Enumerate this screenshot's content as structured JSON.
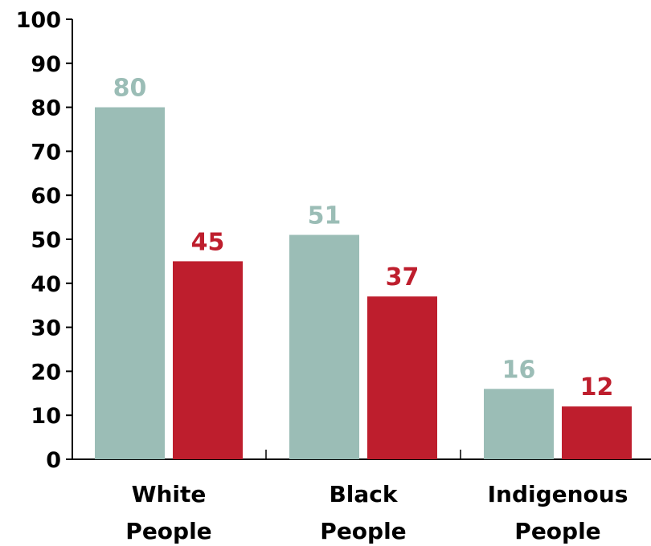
{
  "chart_data": {
    "type": "bar",
    "categories": [
      [
        "White",
        "People"
      ],
      [
        "Black",
        "People"
      ],
      [
        "Indigenous",
        "People"
      ]
    ],
    "series": [
      {
        "values": [
          80,
          51,
          16
        ],
        "color": "#9bbdb6"
      },
      {
        "values": [
          45,
          37,
          12
        ],
        "color": "#be1e2d"
      }
    ],
    "yticks": [
      "0",
      "10",
      "20",
      "30",
      "40",
      "50",
      "60",
      "70",
      "80",
      "90",
      "100"
    ],
    "ylim": [
      0,
      100
    ],
    "grid": false,
    "legend": "none",
    "title": "",
    "xlabel": "",
    "ylabel": ""
  }
}
